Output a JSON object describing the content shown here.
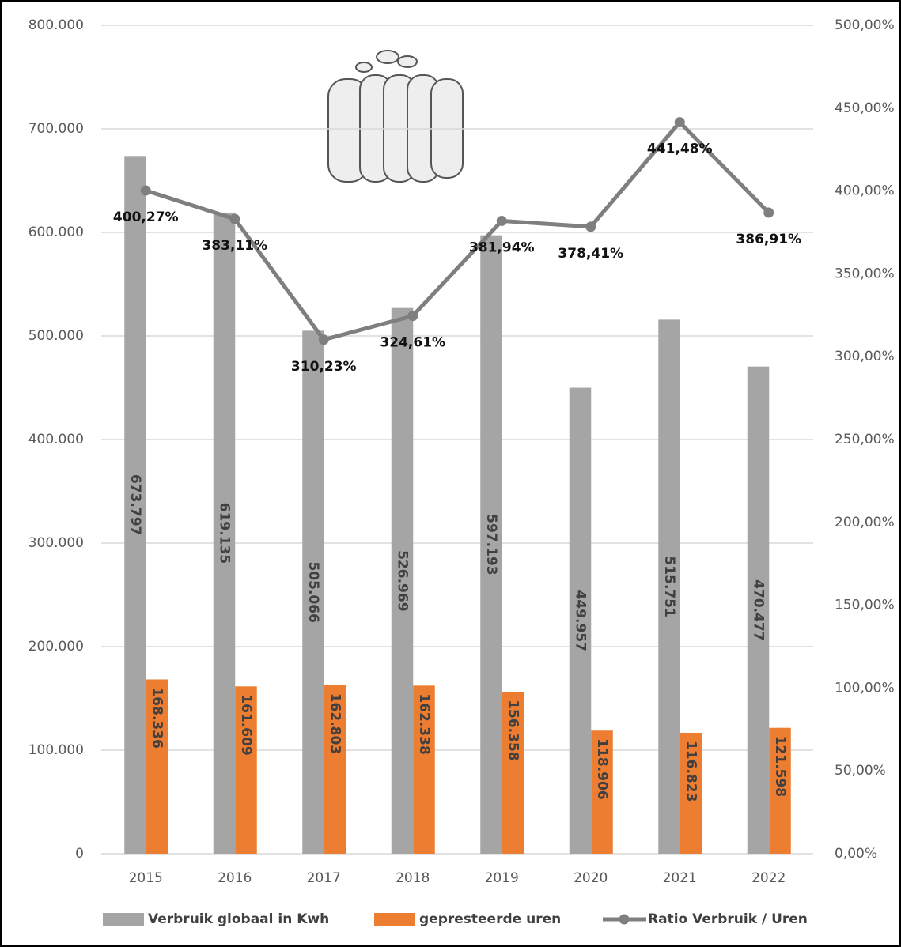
{
  "chart_data": {
    "type": "bar",
    "categories": [
      "2015",
      "2016",
      "2017",
      "2018",
      "2019",
      "2020",
      "2021",
      "2022"
    ],
    "series": [
      {
        "name": "Verbruik globaal in Kwh",
        "color": "#a5a5a5",
        "type": "bar",
        "values": [
          673797,
          619135,
          505066,
          526969,
          597193,
          449957,
          515751,
          470477
        ],
        "value_labels": [
          "673.797",
          "619.135",
          "505.066",
          "526.969",
          "597.193",
          "449.957",
          "515.751",
          "470.477"
        ]
      },
      {
        "name": "gepresteerde uren",
        "color": "#ed7d31",
        "type": "bar",
        "values": [
          168336,
          161609,
          162803,
          162338,
          156358,
          118906,
          116823,
          121598
        ],
        "value_labels": [
          "168.336",
          "161.609",
          "162.803",
          "162.338",
          "156.358",
          "118.906",
          "116.823",
          "121.598"
        ]
      },
      {
        "name": "Ratio Verbruik / Uren",
        "color": "#7f7f7f",
        "type": "line",
        "axis": "y2",
        "values": [
          400.27,
          383.11,
          310.23,
          324.61,
          381.94,
          378.41,
          441.48,
          386.91
        ],
        "value_labels": [
          "400,27%",
          "383,11%",
          "310,23%",
          "324,61%",
          "381,94%",
          "378,41%",
          "441,48%",
          "386,91%"
        ]
      }
    ],
    "ylim": [
      0,
      800000
    ],
    "yticks": [
      0,
      {
        "value": 100000,
        "label": "100.000"
      },
      {
        "value": 200000,
        "label": "200.000"
      },
      {
        "value": 300000,
        "label": "300.000"
      },
      {
        "value": 400000,
        "label": "400.000"
      },
      {
        "value": 500000,
        "label": "500.000"
      },
      {
        "value": 600000,
        "label": "600.000"
      },
      {
        "value": 700000,
        "label": "700.000"
      },
      {
        "value": 800000,
        "label": "800.000"
      }
    ],
    "y2lim": [
      0,
      500
    ],
    "y2ticks": [
      {
        "value": 0,
        "label": "0,00%"
      },
      {
        "value": 50,
        "label": "50,00%"
      },
      {
        "value": 100,
        "label": "100,00%"
      },
      {
        "value": 150,
        "label": "150,00%"
      },
      {
        "value": 200,
        "label": "200,00%"
      },
      {
        "value": 250,
        "label": "250,00%"
      },
      {
        "value": 300,
        "label": "300,00%"
      },
      {
        "value": 350,
        "label": "350,00%"
      },
      {
        "value": 400,
        "label": "400,00%"
      },
      {
        "value": 450,
        "label": "450,00%"
      },
      {
        "value": 500,
        "label": "500,00%"
      }
    ],
    "grid": true,
    "legend": "bottom"
  }
}
